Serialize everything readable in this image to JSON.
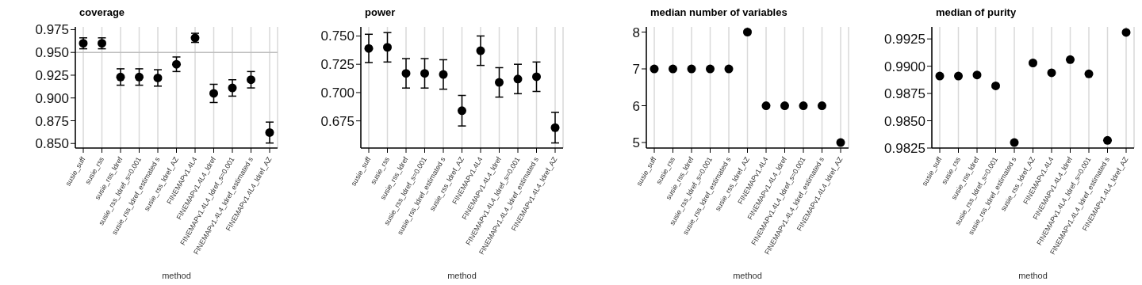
{
  "chart_data": [
    {
      "type": "scatter",
      "title": "coverage",
      "xlabel": "method",
      "categories": [
        "susie_suff",
        "susie_rss",
        "susie_rss_ldref",
        "susie_rss_ldref_s=0.001",
        "susie_rss_ldref_estimated s",
        "susie_rss_ldref_AZ",
        "FINEMAPv1.4L4",
        "FINEMAPv1.4L4_ldref",
        "FINEMAPv1.4L4_ldref_s=0.001",
        "FINEMAPv1.4L4_ldref_estimated s",
        "FINEMAPv1.4L4_ldref_AZ"
      ],
      "values": [
        0.96,
        0.96,
        0.923,
        0.923,
        0.922,
        0.937,
        0.966,
        0.905,
        0.911,
        0.92,
        0.862
      ],
      "errors": [
        0.006,
        0.006,
        0.009,
        0.009,
        0.009,
        0.008,
        0.005,
        0.01,
        0.009,
        0.009,
        0.0115
      ],
      "color": "#000000",
      "marker": "circle",
      "grid": "x",
      "ylim": [
        0.845,
        0.978
      ],
      "yticks": [
        {
          "value": 0.85,
          "label": "0.850"
        },
        0.875,
        {
          "value": 0.9,
          "label": "0.900"
        },
        0.925,
        {
          "value": 0.95,
          "label": "0.950"
        },
        0.975
      ],
      "ref_lines": [
        {
          "axis": "y",
          "value": 0.95,
          "color": "#bebebe"
        }
      ]
    },
    {
      "type": "scatter",
      "title": "power",
      "xlabel": "method",
      "categories": [
        "susie_suff",
        "susie_rss",
        "susie_rss_ldref",
        "susie_rss_ldref_s=0.001",
        "susie_rss_ldref_estimated s",
        "susie_rss_ldref_AZ",
        "FINEMAPv1.4L4",
        "FINEMAPv1.4L4_ldref",
        "FINEMAPv1.4L4_ldref_s=0.001",
        "FINEMAPv1.4L4_ldref_estimated s",
        "FINEMAPv1.4L4_ldref_AZ"
      ],
      "values": [
        0.739,
        0.74,
        0.717,
        0.717,
        0.716,
        0.684,
        0.737,
        0.709,
        0.712,
        0.714,
        0.669
      ],
      "errors": [
        0.0125,
        0.013,
        0.013,
        0.013,
        0.013,
        0.0135,
        0.013,
        0.013,
        0.013,
        0.013,
        0.0135
      ],
      "color": "#000000",
      "marker": "circle",
      "grid": "x",
      "ylim": [
        0.651,
        0.758
      ],
      "yticks": [
        0.675,
        {
          "value": 0.7,
          "label": "0.700"
        },
        0.725,
        {
          "value": 0.75,
          "label": "0.750"
        }
      ]
    },
    {
      "type": "scatter",
      "title": "median number of variables",
      "xlabel": "method",
      "categories": [
        "susie_suff",
        "susie_rss",
        "susie_rss_ldref",
        "susie_rss_ldref_s=0.001",
        "susie_rss_ldref_estimated s",
        "susie_rss_ldref_AZ",
        "FINEMAPv1.4L4",
        "FINEMAPv1.4L4_ldref",
        "FINEMAPv1.4L4_ldref_s=0.001",
        "FINEMAPv1.4L4_ldref_estimated s",
        "FINEMAPv1.4L4_ldref_AZ"
      ],
      "values": [
        7,
        7,
        7,
        7,
        7,
        8,
        6,
        6,
        6,
        6,
        5
      ],
      "color": "#000000",
      "marker": "circle",
      "grid": "x",
      "ylim": [
        4.85,
        8.14
      ],
      "yticks": [
        5,
        6,
        7,
        8
      ]
    },
    {
      "type": "scatter",
      "title": "median of purity",
      "xlabel": "method",
      "categories": [
        "susie_suff",
        "susie_rss",
        "susie_rss_ldref",
        "susie_rss_ldref_s=0.001",
        "susie_rss_ldref_estimated s",
        "susie_rss_ldref_AZ",
        "FINEMAPv1.4L4",
        "FINEMAPv1.4L4_ldref",
        "FINEMAPv1.4L4_ldref_s=0.001",
        "FINEMAPv1.4L4_ldref_estimated s",
        "FINEMAPv1.4L4_ldref_AZ"
      ],
      "values": [
        0.9891,
        0.9891,
        0.9892,
        0.9882,
        0.983,
        0.9903,
        0.9894,
        0.9906,
        0.9893,
        0.9832,
        0.9931
      ],
      "color": "#000000",
      "marker": "circle",
      "grid": "x",
      "ylim": [
        0.9825,
        0.9936
      ],
      "yticks": [
        0.9825,
        {
          "value": 0.985,
          "label": "0.9850"
        },
        0.9875,
        {
          "value": 0.99,
          "label": "0.9900"
        },
        0.9925
      ]
    }
  ]
}
